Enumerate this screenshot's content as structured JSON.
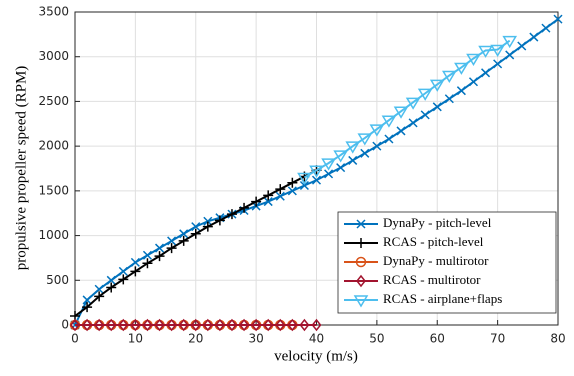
{
  "chart_data": {
    "type": "line",
    "xlabel": "velocity (m/s)",
    "ylabel": "propulsive propeller speed (RPM)",
    "xlim": [
      0,
      80
    ],
    "xticks": [
      0,
      10,
      20,
      30,
      40,
      50,
      60,
      70,
      80
    ],
    "ylim": [
      0,
      3500
    ],
    "yticks": [
      0,
      500,
      1000,
      1500,
      2000,
      2500,
      3000,
      3500
    ],
    "grid": true,
    "legend": "lower right",
    "series": [
      {
        "name": "DynaPy - pitch-level",
        "color": "#0072bd",
        "marker": "x",
        "x": [
          0,
          2,
          4,
          6,
          8,
          10,
          12,
          14,
          16,
          18,
          20,
          22,
          24,
          26,
          28,
          30,
          32,
          34,
          36,
          38,
          40,
          42,
          44,
          46,
          48,
          50,
          52,
          54,
          56,
          58,
          60,
          62,
          64,
          66,
          68,
          70,
          72,
          74,
          76,
          78,
          80
        ],
        "values": [
          0,
          280,
          400,
          500,
          600,
          700,
          780,
          860,
          940,
          1020,
          1100,
          1160,
          1200,
          1240,
          1280,
          1330,
          1380,
          1440,
          1500,
          1560,
          1620,
          1690,
          1760,
          1840,
          1920,
          2000,
          2080,
          2170,
          2260,
          2350,
          2440,
          2530,
          2620,
          2720,
          2820,
          2920,
          3020,
          3120,
          3220,
          3320,
          3420
        ]
      },
      {
        "name": "RCAS - pitch-level",
        "color": "#000000",
        "marker": "+",
        "x": [
          0,
          2,
          4,
          6,
          8,
          10,
          12,
          14,
          16,
          18,
          20,
          22,
          24,
          26,
          28,
          30,
          32,
          34,
          36,
          38,
          40
        ],
        "values": [
          100,
          200,
          320,
          420,
          510,
          600,
          690,
          770,
          860,
          940,
          1020,
          1100,
          1170,
          1240,
          1310,
          1380,
          1450,
          1520,
          1590,
          1660,
          1730
        ]
      },
      {
        "name": "DynaPy - multirotor",
        "color": "#d95319",
        "marker": "o",
        "x": [
          0,
          2,
          4,
          6,
          8,
          10,
          12,
          14,
          16,
          18,
          20,
          22,
          24,
          26,
          28,
          30,
          32,
          34,
          36
        ],
        "values": [
          0,
          0,
          0,
          0,
          0,
          0,
          0,
          0,
          0,
          0,
          0,
          0,
          0,
          0,
          0,
          0,
          0,
          0,
          0
        ]
      },
      {
        "name": "RCAS - multirotor",
        "color": "#a2142f",
        "marker": "d",
        "x": [
          0,
          2,
          4,
          6,
          8,
          10,
          12,
          14,
          16,
          18,
          20,
          22,
          24,
          26,
          28,
          30,
          32,
          34,
          36,
          38,
          40
        ],
        "values": [
          0,
          0,
          0,
          0,
          0,
          0,
          0,
          0,
          0,
          0,
          0,
          0,
          0,
          0,
          0,
          0,
          0,
          0,
          0,
          0,
          0
        ]
      },
      {
        "name": "RCAS - airplane+flaps",
        "color": "#4dbeee",
        "marker": "v",
        "x": [
          38,
          40,
          42,
          44,
          46,
          48,
          50,
          52,
          54,
          56,
          58,
          60,
          62,
          64,
          66,
          68,
          70,
          72
        ],
        "values": [
          1650,
          1730,
          1810,
          1900,
          2000,
          2090,
          2190,
          2290,
          2390,
          2490,
          2590,
          2690,
          2790,
          2880,
          2980,
          3070,
          3080,
          3180
        ]
      }
    ]
  }
}
